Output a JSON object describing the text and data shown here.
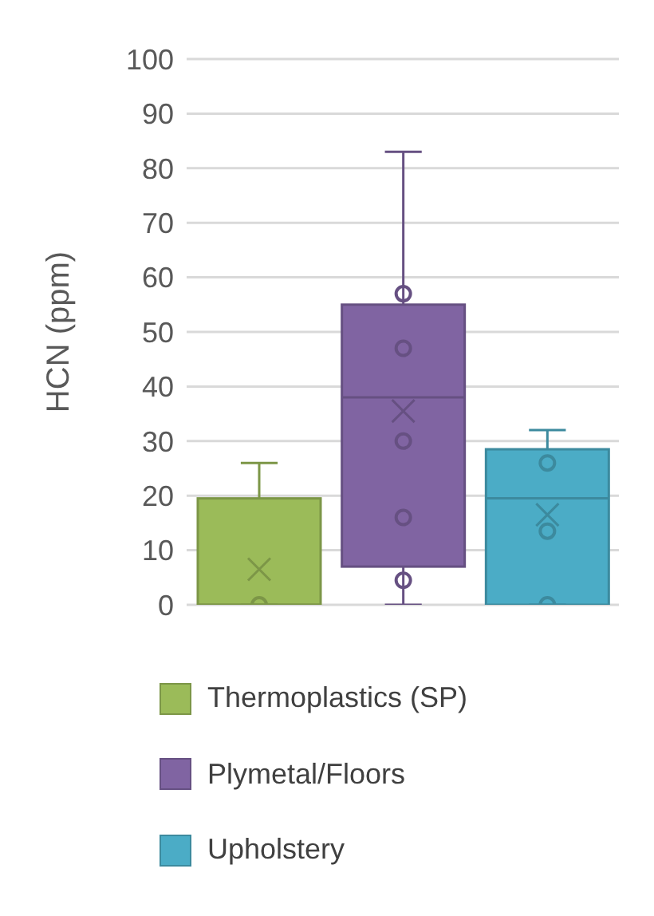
{
  "chart_data": {
    "type": "box",
    "ylabel": "HCN (ppm)",
    "categories": [
      null
    ],
    "ylim": [
      0,
      100
    ],
    "yticks": [
      0,
      10,
      20,
      30,
      40,
      50,
      60,
      70,
      80,
      90,
      100
    ],
    "grid": "y",
    "legend": "bottom",
    "tick_labels": "y",
    "marker": "circle",
    "series": [
      {
        "name": "Thermoplastics (SP)",
        "color": "#9bbb59",
        "boxes": [
          {
            "low": 0,
            "q1": 0,
            "median": 0,
            "q3": 19.5,
            "high": 26,
            "mean": 6.5,
            "outliers": [
              0
            ]
          }
        ]
      },
      {
        "name": "Plymetal/Floors",
        "color": "#8064a2",
        "boxes": [
          {
            "low": 0,
            "q1": 7,
            "median": 38,
            "q3": 55,
            "high": 83,
            "mean": 35.5,
            "outliers": [
              57,
              47,
              30,
              16,
              4.5
            ]
          }
        ]
      },
      {
        "name": "Upholstery",
        "color": "#4bacc6",
        "boxes": [
          {
            "low": 0,
            "q1": 0,
            "median": 19.5,
            "q3": 28.5,
            "high": 32,
            "mean": 16.5,
            "outliers": [
              26,
              13.5,
              0
            ]
          }
        ]
      }
    ]
  }
}
